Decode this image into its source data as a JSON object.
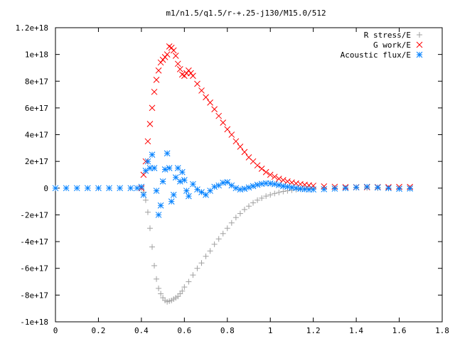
{
  "chart_data": {
    "type": "scatter",
    "title": "m1/n1.5/q1.5/r-+.25-j130/M15.0/512",
    "xlim": [
      0,
      1.8
    ],
    "ylim": [
      -1e+18,
      1.2e+18
    ],
    "xticks": [
      {
        "value": 0,
        "label": "0"
      },
      {
        "value": 0.2,
        "label": "0.2"
      },
      {
        "value": 0.4,
        "label": "0.4"
      },
      {
        "value": 0.6,
        "label": "0.6"
      },
      {
        "value": 0.8,
        "label": "0.8"
      },
      {
        "value": 1.0,
        "label": "1"
      },
      {
        "value": 1.2,
        "label": "1.2"
      },
      {
        "value": 1.4,
        "label": "1.4"
      },
      {
        "value": 1.6,
        "label": "1.6"
      },
      {
        "value": 1.8,
        "label": "1.8"
      }
    ],
    "yticks": [
      {
        "value": -1e+18,
        "label": "-1e+18"
      },
      {
        "value": -8e+17,
        "label": "-8e+17"
      },
      {
        "value": -6e+17,
        "label": "-6e+17"
      },
      {
        "value": -4e+17,
        "label": "-4e+17"
      },
      {
        "value": -2e+17,
        "label": "-2e+17"
      },
      {
        "value": 0,
        "label": "0"
      },
      {
        "value": 2e+17,
        "label": "2e+17"
      },
      {
        "value": 4e+17,
        "label": "4e+17"
      },
      {
        "value": 6e+17,
        "label": "6e+17"
      },
      {
        "value": 8e+17,
        "label": "8e+17"
      },
      {
        "value": 1e+18,
        "label": "1e+18"
      },
      {
        "value": 1.2e+18,
        "label": "1.2e+18"
      }
    ],
    "grid": false,
    "legend_position": "top-right",
    "series": [
      {
        "name": "R stress/E",
        "marker": "plus",
        "color": "#a0a0a0",
        "points": [
          [
            0.4,
            0.0
          ],
          [
            0.41,
            -3e+16
          ],
          [
            0.42,
            -9e+16
          ],
          [
            0.43,
            -1.8e+17
          ],
          [
            0.44,
            -3e+17
          ],
          [
            0.45,
            -4.4e+17
          ],
          [
            0.46,
            -5.8e+17
          ],
          [
            0.47,
            -6.8e+17
          ],
          [
            0.48,
            -7.5e+17
          ],
          [
            0.49,
            -7.9e+17
          ],
          [
            0.5,
            -8.2e+17
          ],
          [
            0.51,
            -8.4e+17
          ],
          [
            0.52,
            -8.5e+17
          ],
          [
            0.53,
            -8.45e+17
          ],
          [
            0.54,
            -8.4e+17
          ],
          [
            0.55,
            -8.3e+17
          ],
          [
            0.56,
            -8.2e+17
          ],
          [
            0.57,
            -8.1e+17
          ],
          [
            0.58,
            -7.9e+17
          ],
          [
            0.59,
            -7.7e+17
          ],
          [
            0.6,
            -7.4e+17
          ],
          [
            0.62,
            -7e+17
          ],
          [
            0.64,
            -6.5e+17
          ],
          [
            0.66,
            -6e+17
          ],
          [
            0.68,
            -5.6e+17
          ],
          [
            0.7,
            -5.1e+17
          ],
          [
            0.72,
            -4.7e+17
          ],
          [
            0.74,
            -4.2e+17
          ],
          [
            0.76,
            -3.8e+17
          ],
          [
            0.78,
            -3.4e+17
          ],
          [
            0.8,
            -3e+17
          ],
          [
            0.82,
            -2.6e+17
          ],
          [
            0.84,
            -2.2e+17
          ],
          [
            0.86,
            -1.9e+17
          ],
          [
            0.88,
            -1.6e+17
          ],
          [
            0.9,
            -1.35e+17
          ],
          [
            0.92,
            -1.1e+17
          ],
          [
            0.94,
            -9e+16
          ],
          [
            0.96,
            -7.5e+16
          ],
          [
            0.98,
            -6e+16
          ],
          [
            1.0,
            -5e+16
          ],
          [
            1.02,
            -4e+16
          ],
          [
            1.04,
            -3.2e+16
          ],
          [
            1.06,
            -2.5e+16
          ],
          [
            1.08,
            -2e+16
          ],
          [
            1.1,
            -1.5e+16
          ],
          [
            1.12,
            -1.1e+16
          ],
          [
            1.14,
            -8000000000000000.0
          ],
          [
            1.16,
            -6000000000000000.0
          ],
          [
            1.18,
            -4000000000000000.0
          ],
          [
            1.2,
            -3000000000000000.0
          ],
          [
            1.25,
            -1000000000000000.0
          ],
          [
            1.3,
            0.0
          ],
          [
            1.35,
            2000000000000000.0
          ],
          [
            1.4,
            3000000000000000.0
          ],
          [
            1.45,
            2000000000000000.0
          ],
          [
            1.5,
            0.0
          ],
          [
            1.55,
            -2000000000000000.0
          ],
          [
            1.6,
            -3000000000000000.0
          ],
          [
            1.65,
            -2000000000000000.0
          ]
        ]
      },
      {
        "name": "G work/E",
        "marker": "cross",
        "color": "#ff0000",
        "points": [
          [
            0.4,
            0.0
          ],
          [
            0.41,
            1e+17
          ],
          [
            0.42,
            2e+17
          ],
          [
            0.43,
            3.5e+17
          ],
          [
            0.44,
            4.8e+17
          ],
          [
            0.45,
            6e+17
          ],
          [
            0.46,
            7.2e+17
          ],
          [
            0.47,
            8.1e+17
          ],
          [
            0.48,
            8.8e+17
          ],
          [
            0.49,
            9.4e+17
          ],
          [
            0.5,
            9.6e+17
          ],
          [
            0.51,
            9.8e+17
          ],
          [
            0.52,
            1e+18
          ],
          [
            0.53,
            1.06e+18
          ],
          [
            0.54,
            1.05e+18
          ],
          [
            0.55,
            1.03e+18
          ],
          [
            0.56,
            9.9e+17
          ],
          [
            0.57,
            9.3e+17
          ],
          [
            0.58,
            8.9e+17
          ],
          [
            0.59,
            8.5e+17
          ],
          [
            0.6,
            8.4e+17
          ],
          [
            0.61,
            8.6e+17
          ],
          [
            0.62,
            8.8e+17
          ],
          [
            0.63,
            8.6e+17
          ],
          [
            0.64,
            8.4e+17
          ],
          [
            0.66,
            7.8e+17
          ],
          [
            0.68,
            7.3e+17
          ],
          [
            0.7,
            6.8e+17
          ],
          [
            0.72,
            6.4e+17
          ],
          [
            0.74,
            5.9e+17
          ],
          [
            0.76,
            5.4e+17
          ],
          [
            0.78,
            4.9e+17
          ],
          [
            0.8,
            4.4e+17
          ],
          [
            0.82,
            4e+17
          ],
          [
            0.84,
            3.5e+17
          ],
          [
            0.86,
            3.1e+17
          ],
          [
            0.88,
            2.7e+17
          ],
          [
            0.9,
            2.3e+17
          ],
          [
            0.92,
            2e+17
          ],
          [
            0.94,
            1.7e+17
          ],
          [
            0.96,
            1.45e+17
          ],
          [
            0.98,
            1.2e+17
          ],
          [
            1.0,
            1e+17
          ],
          [
            1.02,
            8.5e+16
          ],
          [
            1.04,
            7e+16
          ],
          [
            1.06,
            6e+16
          ],
          [
            1.08,
            5e+16
          ],
          [
            1.1,
            4.2e+16
          ],
          [
            1.12,
            3.5e+16
          ],
          [
            1.14,
            3e+16
          ],
          [
            1.16,
            2.5e+16
          ],
          [
            1.18,
            2.1e+16
          ],
          [
            1.2,
            1.8e+16
          ],
          [
            1.25,
            1.3e+16
          ],
          [
            1.3,
            1e+16
          ],
          [
            1.35,
            8000000000000000.0
          ],
          [
            1.4,
            7000000000000000.0
          ],
          [
            1.45,
            7000000000000000.0
          ],
          [
            1.5,
            8000000000000000.0
          ],
          [
            1.55,
            8000000000000000.0
          ],
          [
            1.6,
            9000000000000000.0
          ],
          [
            1.65,
            9000000000000000.0
          ]
        ]
      },
      {
        "name": "Acoustic flux/E",
        "marker": "star",
        "color": "#0080ff",
        "points": [
          [
            0.0,
            0.0
          ],
          [
            0.05,
            0.0
          ],
          [
            0.1,
            0.0
          ],
          [
            0.15,
            0.0
          ],
          [
            0.2,
            0.0
          ],
          [
            0.25,
            0.0
          ],
          [
            0.3,
            0.0
          ],
          [
            0.35,
            0.0
          ],
          [
            0.38,
            0.0
          ],
          [
            0.4,
            1e+16
          ],
          [
            0.41,
            -5e+16
          ],
          [
            0.42,
            1.3e+17
          ],
          [
            0.43,
            2e+17
          ],
          [
            0.44,
            1.5e+17
          ],
          [
            0.45,
            2.5e+17
          ],
          [
            0.46,
            1.5e+17
          ],
          [
            0.47,
            -2e+16
          ],
          [
            0.48,
            -2e+17
          ],
          [
            0.49,
            -1.3e+17
          ],
          [
            0.5,
            5e+16
          ],
          [
            0.51,
            1.4e+17
          ],
          [
            0.52,
            2.6e+17
          ],
          [
            0.53,
            1.5e+17
          ],
          [
            0.54,
            -1e+17
          ],
          [
            0.55,
            -5e+16
          ],
          [
            0.56,
            8e+16
          ],
          [
            0.57,
            1.5e+17
          ],
          [
            0.58,
            5e+16
          ],
          [
            0.59,
            1.2e+17
          ],
          [
            0.6,
            6e+16
          ],
          [
            0.61,
            -2e+16
          ],
          [
            0.62,
            -6e+16
          ],
          [
            0.64,
            3e+16
          ],
          [
            0.66,
            -1e+16
          ],
          [
            0.68,
            -3e+16
          ],
          [
            0.7,
            -5e+16
          ],
          [
            0.72,
            -2e+16
          ],
          [
            0.74,
            1e+16
          ],
          [
            0.76,
            2e+16
          ],
          [
            0.78,
            4e+16
          ],
          [
            0.8,
            4.5e+16
          ],
          [
            0.82,
            2e+16
          ],
          [
            0.84,
            0.0
          ],
          [
            0.86,
            -1e+16
          ],
          [
            0.88,
            -5000000000000000.0
          ],
          [
            0.9,
            5000000000000000.0
          ],
          [
            0.92,
            1.5e+16
          ],
          [
            0.94,
            2.5e+16
          ],
          [
            0.96,
            3.2e+16
          ],
          [
            0.98,
            3.6e+16
          ],
          [
            1.0,
            3.5e+16
          ],
          [
            1.02,
            3e+16
          ],
          [
            1.04,
            2.3e+16
          ],
          [
            1.06,
            1.5e+16
          ],
          [
            1.08,
            1e+16
          ],
          [
            1.1,
            5000000000000000.0
          ],
          [
            1.12,
            0.0
          ],
          [
            1.14,
            -5000000000000000.0
          ],
          [
            1.16,
            -8000000000000000.0
          ],
          [
            1.18,
            -1e+16
          ],
          [
            1.2,
            -1e+16
          ],
          [
            1.25,
            -8000000000000000.0
          ],
          [
            1.3,
            -4000000000000000.0
          ],
          [
            1.35,
            0.0
          ],
          [
            1.4,
            6000000000000000.0
          ],
          [
            1.45,
            1e+16
          ],
          [
            1.5,
            5000000000000000.0
          ],
          [
            1.55,
            0.0
          ],
          [
            1.6,
            -5000000000000000.0
          ],
          [
            1.65,
            -3000000000000000.0
          ]
        ]
      }
    ]
  }
}
